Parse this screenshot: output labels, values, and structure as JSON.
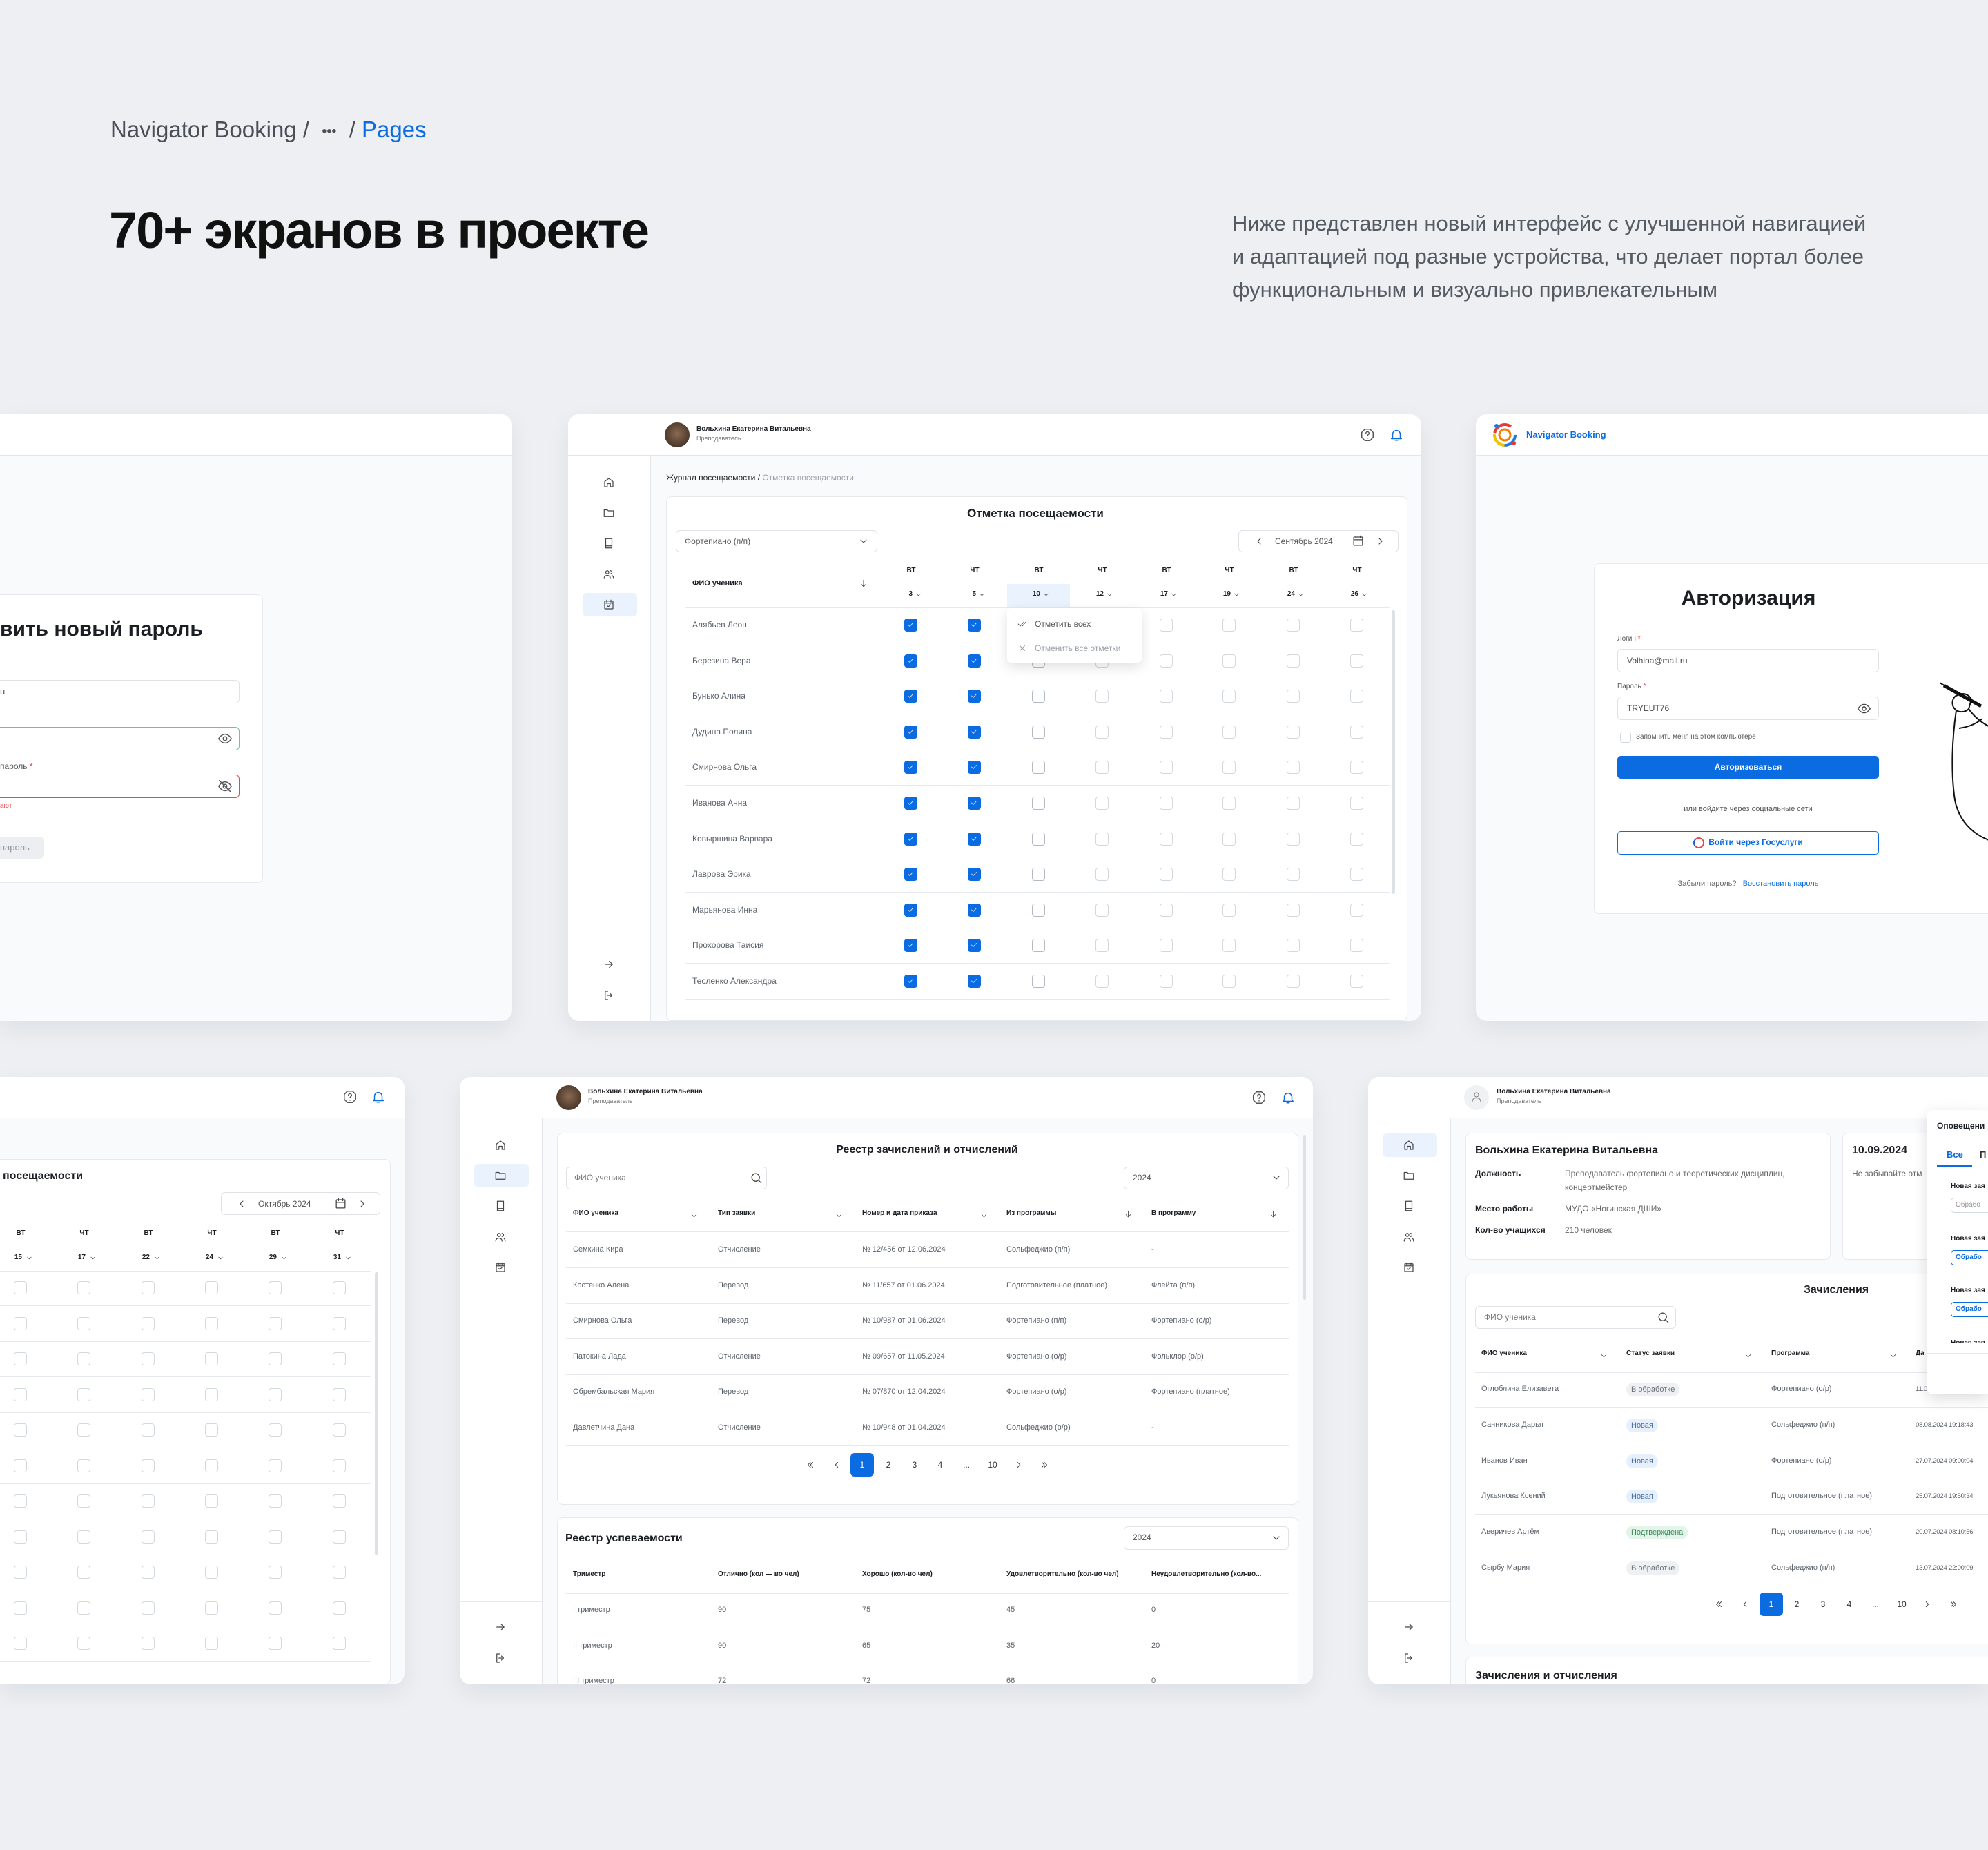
{
  "colors": {
    "accent": "#0a6ce0",
    "background": "#edeff2",
    "success_border": "#6cc49a",
    "error": "#e5484d",
    "text_muted": "#5b616b"
  },
  "page": {
    "breadcrumb": {
      "root": "Navigator Booking",
      "sep1": "/",
      "ellipsis": "•••",
      "sep2": "/",
      "current": "Pages"
    },
    "title": "70+ экранов в проекте",
    "description": [
      "Ниже представлен новый интерфейс с улучшенной навигацией",
      "и адаптацией под разные устройства, что делает портал более",
      "функциональным и визуально привлекательным"
    ]
  },
  "user": {
    "name": "Вольхина Екатерина Витальевна",
    "role": "Преподаватель"
  },
  "sidebar_icons": [
    "home-icon",
    "folder-icon",
    "book-icon",
    "users-icon",
    "calendar-check-icon"
  ],
  "new_password": {
    "title_fragment": "вить новый пароль",
    "email_fragment": "u",
    "confirm_label_fragment": "пароль",
    "required_mark": "*",
    "error_fragment": "ают",
    "button_fragment": "пароль"
  },
  "attendance_september": {
    "breadcrumb": {
      "parent": "Журнал посещаемости",
      "sep": "/",
      "current": "Отметка посещаемости"
    },
    "title": "Отметка посещаемости",
    "program": "Фортепиано (п/п)",
    "month": "Сентябрь 2024",
    "name_header": "ФИО ученика",
    "days": [
      {
        "dow": "ВТ",
        "num": "3"
      },
      {
        "dow": "ЧТ",
        "num": "5"
      },
      {
        "dow": "ВТ",
        "num": "10"
      },
      {
        "dow": "ЧТ",
        "num": "12"
      },
      {
        "dow": "ВТ",
        "num": "17"
      },
      {
        "dow": "ЧТ",
        "num": "19"
      },
      {
        "dow": "ВТ",
        "num": "24"
      },
      {
        "dow": "ЧТ",
        "num": "26"
      }
    ],
    "selected_day": "10",
    "students": [
      {
        "name": "Алябьев Леон",
        "marks": [
          true,
          true,
          false,
          false,
          false,
          false,
          false,
          false
        ]
      },
      {
        "name": "Березина Вера",
        "marks": [
          true,
          true,
          false,
          false,
          false,
          false,
          false,
          false
        ]
      },
      {
        "name": "Бунько Алина",
        "marks": [
          true,
          true,
          false,
          false,
          false,
          false,
          false,
          false
        ]
      },
      {
        "name": "Дудина Полина",
        "marks": [
          true,
          true,
          false,
          false,
          false,
          false,
          false,
          false
        ]
      },
      {
        "name": "Смирнова Ольга",
        "marks": [
          true,
          true,
          false,
          false,
          false,
          false,
          false,
          false
        ]
      },
      {
        "name": "Иванова Анна",
        "marks": [
          true,
          true,
          false,
          false,
          false,
          false,
          false,
          false
        ]
      },
      {
        "name": "Ковыршина Варвара",
        "marks": [
          true,
          true,
          false,
          false,
          false,
          false,
          false,
          false
        ]
      },
      {
        "name": "Лаврова Эрика",
        "marks": [
          true,
          true,
          false,
          false,
          false,
          false,
          false,
          false
        ]
      },
      {
        "name": "Марьянова Инна",
        "marks": [
          true,
          true,
          false,
          false,
          false,
          false,
          false,
          false
        ]
      },
      {
        "name": "Прохорова Таисия",
        "marks": [
          true,
          true,
          false,
          false,
          false,
          false,
          false,
          false
        ]
      },
      {
        "name": "Тесленко Александра",
        "marks": [
          true,
          true,
          false,
          false,
          false,
          false,
          false,
          false
        ]
      }
    ],
    "menu": {
      "mark_all": "Отметить всех",
      "unmark_all": "Отменить все отметки"
    }
  },
  "login": {
    "brand": "Navigator Booking",
    "title": "Авторизация",
    "login_label": "Логин",
    "login_value": "Volhina@mail.ru",
    "password_label": "Пароль",
    "password_value": "TRYEUT76",
    "required_mark": "*",
    "remember": "Запомнить меня на этом компьютере",
    "submit": "Авторизоваться",
    "social_divider": "или войдите через социальные сети",
    "gosuslugi": "Войти через Госуслуги",
    "forgot": "Забыли пароль?",
    "restore": "Восстановить пароль"
  },
  "attendance_october": {
    "title_fragment": "посещаемости",
    "month": "Октябрь 2024",
    "days": [
      {
        "dow": "ВТ",
        "num": "15"
      },
      {
        "dow": "ЧТ",
        "num": "17"
      },
      {
        "dow": "ВТ",
        "num": "22"
      },
      {
        "dow": "ЧТ",
        "num": "24"
      },
      {
        "dow": "ВТ",
        "num": "29"
      },
      {
        "dow": "ЧТ",
        "num": "31"
      }
    ],
    "marks": [
      [
        false,
        false,
        false,
        false,
        false,
        false
      ],
      [
        false,
        false,
        false,
        false,
        false,
        false
      ],
      [
        false,
        false,
        false,
        false,
        false,
        false
      ],
      [
        false,
        false,
        false,
        false,
        false,
        false
      ],
      [
        false,
        false,
        false,
        false,
        false,
        false
      ],
      [
        false,
        false,
        false,
        false,
        false,
        false
      ],
      [
        false,
        false,
        false,
        false,
        false,
        false
      ],
      [
        false,
        false,
        false,
        false,
        false,
        false
      ],
      [
        false,
        false,
        false,
        false,
        false,
        false
      ],
      [
        false,
        false,
        false,
        false,
        false,
        false
      ],
      [
        false,
        false,
        false,
        false,
        false,
        false
      ]
    ]
  },
  "registry": {
    "title": "Реестр зачислений и отчислений",
    "search_placeholder": "ФИО ученика",
    "year": "2024",
    "columns": [
      "ФИО ученика",
      "Тип заявки",
      "Номер и дата приказа",
      "Из программы",
      "В программу"
    ],
    "rows": [
      [
        "Семкина Кира",
        "Отчисление",
        "№ 12/456 от 12.06.2024",
        "Сольфеджио (п/п)",
        "-"
      ],
      [
        "Костенко Алена",
        "Перевод",
        "№ 11/657 от 01.06.2024",
        "Подготовительное (платное)",
        "Флейта (п/п)"
      ],
      [
        "Смирнова Ольга",
        "Перевод",
        "№ 10/987 от 01.06.2024",
        "Фортепиано (п/п)",
        "Фортепиано (о/р)"
      ],
      [
        "Патокина Лада",
        "Отчисление",
        "№ 09/657 от 11.05.2024",
        "Фортепиано (о/р)",
        "Фольклор (о/р)"
      ],
      [
        "Обрембальская Мария",
        "Перевод",
        "№ 07/870 от 12.04.2024",
        "Фортепиано (о/р)",
        "Фортепиано (платное)"
      ],
      [
        "Давлетчина Дана",
        "Отчисление",
        "№ 10/948 от 01.04.2024",
        "Сольфеджио (о/р)",
        "-"
      ]
    ],
    "pagination": [
      "«",
      "‹",
      "1",
      "2",
      "3",
      "4",
      "...",
      "10",
      "›",
      "»"
    ],
    "current_page": "1",
    "performance": {
      "title": "Реестр успеваемости",
      "year": "2024",
      "columns": [
        "Триместр",
        "Отлично (кол — во чел)",
        "Хорошо (кол-во чел)",
        "Удовлетворительно (кол-во чел)",
        "Неудовлетворительно (кол-во..."
      ],
      "rows": [
        [
          "I триместр",
          "90",
          "75",
          "45",
          "0"
        ],
        [
          "II триместр",
          "90",
          "65",
          "35",
          "20"
        ],
        [
          "III триместр",
          "72",
          "72",
          "66",
          "0"
        ]
      ]
    }
  },
  "profile": {
    "name": "Вольхина Екатерина Витальевна",
    "fields": [
      {
        "label": "Должность",
        "value": "Преподаватель фортепиано и теоретических дисциплин,",
        "value2": "концертмейстер"
      },
      {
        "label": "Место работы",
        "value": "МУДО «Ногинская ДШИ»"
      },
      {
        "label": "Кол-во учащихся",
        "value": "210 человек"
      }
    ],
    "reminder": {
      "date": "10.09.2024",
      "text_fragment": "Не забывайте отм"
    },
    "notifications": {
      "title_fragment": "Оповещени",
      "tab_all": "Все",
      "tab_other_fragment": "П",
      "items": [
        {
          "title_fragment": "Новая зая",
          "button_fragment": "Обрабо",
          "style": "muted"
        },
        {
          "title_fragment": "Новая зая",
          "button_fragment": "Обрабо",
          "style": "primary"
        },
        {
          "title_fragment": "Новая зая",
          "button_fragment": "Обрабо",
          "style": "primary"
        }
      ]
    },
    "enrollments": {
      "title": "Зачисления",
      "search_placeholder": "ФИО ученика",
      "columns": [
        "ФИО ученика",
        "Статус заявки",
        "Программа",
        "Да"
      ],
      "rows": [
        {
          "name": "Оглоблина Елизавета",
          "status": "В обработке",
          "status_type": "processing",
          "program": "Фортепиано (о/р)",
          "date": "11.0"
        },
        {
          "name": "Санникова Дарья",
          "status": "Новая",
          "status_type": "new",
          "program": "Сольфеджио (п/п)",
          "date": "08.08.2024 19:18:43"
        },
        {
          "name": "Иванов Иван",
          "status": "Новая",
          "status_type": "new",
          "program": "Фортепиано (о/р)",
          "date": "27.07.2024 09:00:04"
        },
        {
          "name": "Лукьянова Ксений",
          "status": "Новая",
          "status_type": "new",
          "program": "Подготовительное (платное)",
          "date": "25.07.2024 19:50:34"
        },
        {
          "name": "Аверичев Артём",
          "status": "Подтверждена",
          "status_type": "confirmed",
          "program": "Подготовительное (платное)",
          "date": "20.07.2024 08:10:56"
        },
        {
          "name": "Сырбу Мария",
          "status": "В обработке",
          "status_type": "processing",
          "program": "Сольфеджио (п/п)",
          "date": "13.07.2024 22:00:09"
        }
      ],
      "pagination": [
        "«",
        "‹",
        "1",
        "2",
        "3",
        "4",
        "...",
        "10",
        "›",
        "»"
      ],
      "current_page": "1"
    },
    "second_section_title": "Зачисления и отчисления"
  }
}
